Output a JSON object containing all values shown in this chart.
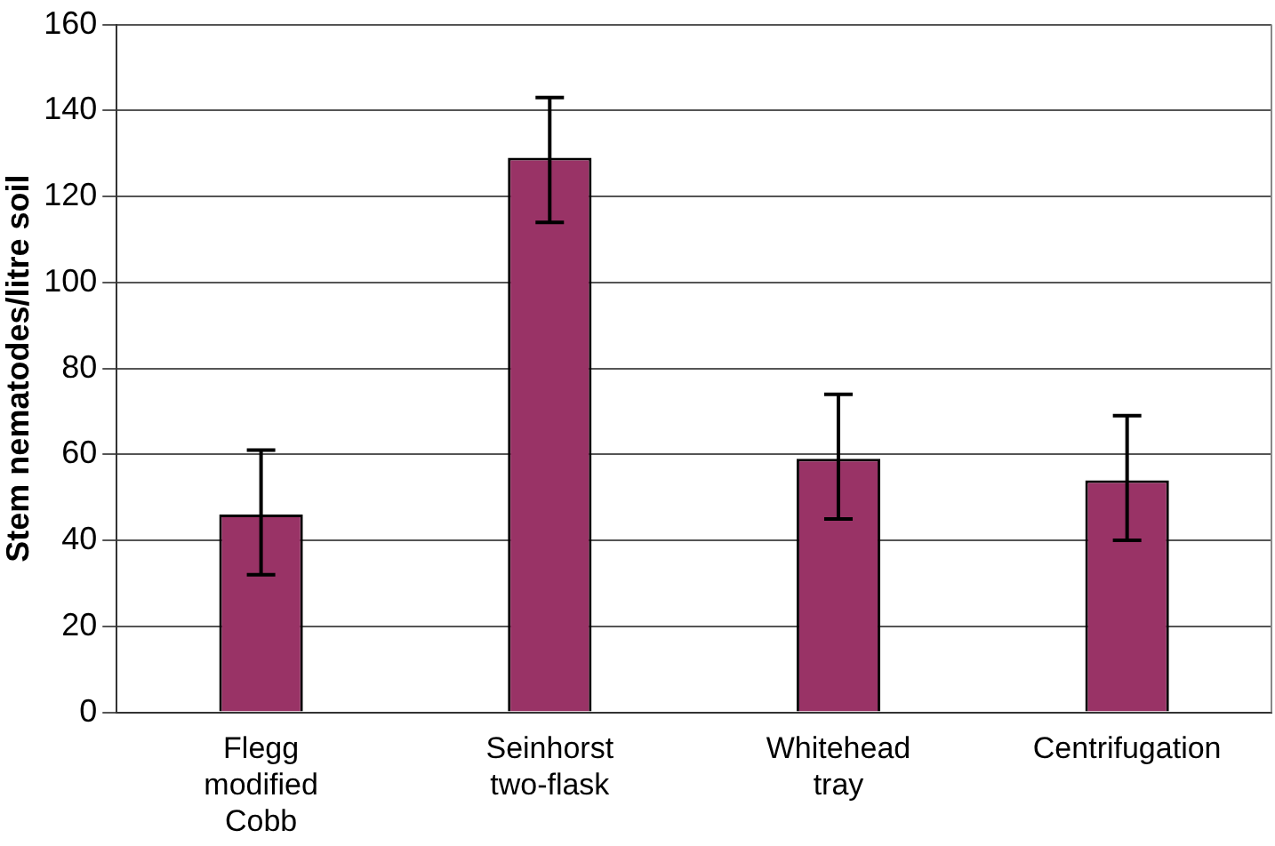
{
  "chart_data": {
    "type": "bar",
    "ylabel": "Stem nematodes/litre soil",
    "categories": [
      "Flegg modified Cobb",
      "Seinhorst two-flask",
      "Whitehead tray",
      "Centrifugation"
    ],
    "values": [
      46,
      129,
      59,
      54
    ],
    "errors": [
      [
        32,
        61
      ],
      [
        114,
        143
      ],
      [
        45,
        74
      ],
      [
        40,
        69
      ]
    ],
    "color": "#993366",
    "ylim": [
      0,
      160
    ],
    "yticks": [
      0,
      20,
      40,
      60,
      80,
      100,
      120,
      140,
      160
    ],
    "grid": "y",
    "legend": false
  }
}
